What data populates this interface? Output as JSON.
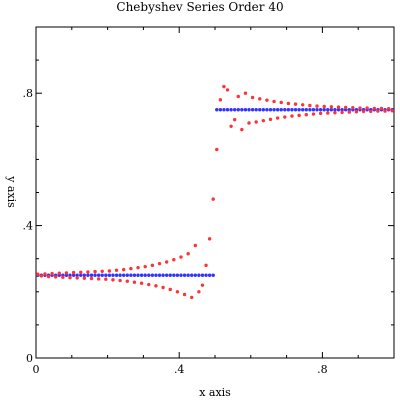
{
  "chart_data": {
    "type": "scatter",
    "title": "Chebyshev Series Order 40",
    "xlabel": "x axis",
    "ylabel": "y axis",
    "xlim": [
      0,
      1
    ],
    "ylim": [
      0,
      1
    ],
    "xticks": [
      {
        "value": 0,
        "label": "0"
      },
      {
        "value": 0.4,
        "label": ".4"
      },
      {
        "value": 0.8,
        "label": ".8"
      }
    ],
    "yticks": [
      {
        "value": 0,
        "label": "0"
      },
      {
        "value": 0.4,
        "label": ".4"
      },
      {
        "value": 0.8,
        "label": ".8"
      }
    ],
    "grid": false,
    "legend": "none",
    "series": [
      {
        "color": "#3333ff",
        "points": [
          [
            0.005,
            0.25
          ],
          [
            0.015,
            0.25
          ],
          [
            0.025,
            0.25
          ],
          [
            0.035,
            0.25
          ],
          [
            0.045,
            0.25
          ],
          [
            0.055,
            0.25
          ],
          [
            0.065,
            0.25
          ],
          [
            0.075,
            0.25
          ],
          [
            0.085,
            0.25
          ],
          [
            0.095,
            0.25
          ],
          [
            0.105,
            0.25
          ],
          [
            0.115,
            0.25
          ],
          [
            0.125,
            0.25
          ],
          [
            0.135,
            0.25
          ],
          [
            0.145,
            0.25
          ],
          [
            0.155,
            0.25
          ],
          [
            0.165,
            0.25
          ],
          [
            0.175,
            0.25
          ],
          [
            0.185,
            0.25
          ],
          [
            0.195,
            0.25
          ],
          [
            0.205,
            0.25
          ],
          [
            0.215,
            0.25
          ],
          [
            0.225,
            0.25
          ],
          [
            0.235,
            0.25
          ],
          [
            0.245,
            0.25
          ],
          [
            0.255,
            0.25
          ],
          [
            0.265,
            0.25
          ],
          [
            0.275,
            0.25
          ],
          [
            0.285,
            0.25
          ],
          [
            0.295,
            0.25
          ],
          [
            0.305,
            0.25
          ],
          [
            0.315,
            0.25
          ],
          [
            0.325,
            0.25
          ],
          [
            0.335,
            0.25
          ],
          [
            0.345,
            0.25
          ],
          [
            0.355,
            0.25
          ],
          [
            0.365,
            0.25
          ],
          [
            0.375,
            0.25
          ],
          [
            0.385,
            0.25
          ],
          [
            0.395,
            0.25
          ],
          [
            0.405,
            0.25
          ],
          [
            0.415,
            0.25
          ],
          [
            0.425,
            0.25
          ],
          [
            0.435,
            0.25
          ],
          [
            0.445,
            0.25
          ],
          [
            0.455,
            0.25
          ],
          [
            0.465,
            0.25
          ],
          [
            0.475,
            0.25
          ],
          [
            0.485,
            0.25
          ],
          [
            0.495,
            0.25
          ],
          [
            0.505,
            0.75
          ],
          [
            0.515,
            0.75
          ],
          [
            0.525,
            0.75
          ],
          [
            0.535,
            0.75
          ],
          [
            0.545,
            0.75
          ],
          [
            0.555,
            0.75
          ],
          [
            0.565,
            0.75
          ],
          [
            0.575,
            0.75
          ],
          [
            0.585,
            0.75
          ],
          [
            0.595,
            0.75
          ],
          [
            0.605,
            0.75
          ],
          [
            0.615,
            0.75
          ],
          [
            0.625,
            0.75
          ],
          [
            0.635,
            0.75
          ],
          [
            0.645,
            0.75
          ],
          [
            0.655,
            0.75
          ],
          [
            0.665,
            0.75
          ],
          [
            0.675,
            0.75
          ],
          [
            0.685,
            0.75
          ],
          [
            0.695,
            0.75
          ],
          [
            0.705,
            0.75
          ],
          [
            0.715,
            0.75
          ],
          [
            0.725,
            0.75
          ],
          [
            0.735,
            0.75
          ],
          [
            0.745,
            0.75
          ],
          [
            0.755,
            0.75
          ],
          [
            0.765,
            0.75
          ],
          [
            0.775,
            0.75
          ],
          [
            0.785,
            0.75
          ],
          [
            0.795,
            0.75
          ],
          [
            0.805,
            0.75
          ],
          [
            0.815,
            0.75
          ],
          [
            0.825,
            0.75
          ],
          [
            0.835,
            0.75
          ],
          [
            0.845,
            0.75
          ],
          [
            0.855,
            0.75
          ],
          [
            0.865,
            0.75
          ],
          [
            0.875,
            0.75
          ],
          [
            0.885,
            0.75
          ],
          [
            0.895,
            0.75
          ],
          [
            0.905,
            0.75
          ],
          [
            0.915,
            0.75
          ],
          [
            0.925,
            0.75
          ],
          [
            0.935,
            0.75
          ],
          [
            0.945,
            0.75
          ],
          [
            0.955,
            0.75
          ],
          [
            0.965,
            0.75
          ],
          [
            0.975,
            0.75
          ],
          [
            0.985,
            0.75
          ],
          [
            0.995,
            0.75
          ]
        ]
      },
      {
        "color": "#ff3333",
        "points": [
          [
            0.005,
            0.253
          ],
          [
            0.015,
            0.248
          ],
          [
            0.025,
            0.254
          ],
          [
            0.035,
            0.246
          ],
          [
            0.045,
            0.255
          ],
          [
            0.055,
            0.245
          ],
          [
            0.065,
            0.256
          ],
          [
            0.075,
            0.244
          ],
          [
            0.085,
            0.257
          ],
          [
            0.095,
            0.243
          ],
          [
            0.105,
            0.258
          ],
          [
            0.115,
            0.242
          ],
          [
            0.125,
            0.259
          ],
          [
            0.135,
            0.241
          ],
          [
            0.145,
            0.26
          ],
          [
            0.155,
            0.24
          ],
          [
            0.165,
            0.261
          ],
          [
            0.175,
            0.239
          ],
          [
            0.185,
            0.262
          ],
          [
            0.195,
            0.238
          ],
          [
            0.205,
            0.263
          ],
          [
            0.215,
            0.236
          ],
          [
            0.225,
            0.265
          ],
          [
            0.235,
            0.234
          ],
          [
            0.245,
            0.267
          ],
          [
            0.255,
            0.232
          ],
          [
            0.265,
            0.27
          ],
          [
            0.275,
            0.229
          ],
          [
            0.285,
            0.273
          ],
          [
            0.295,
            0.226
          ],
          [
            0.305,
            0.276
          ],
          [
            0.315,
            0.222
          ],
          [
            0.325,
            0.28
          ],
          [
            0.335,
            0.218
          ],
          [
            0.345,
            0.285
          ],
          [
            0.355,
            0.213
          ],
          [
            0.365,
            0.29
          ],
          [
            0.375,
            0.207
          ],
          [
            0.385,
            0.297
          ],
          [
            0.395,
            0.2
          ],
          [
            0.405,
            0.305
          ],
          [
            0.415,
            0.192
          ],
          [
            0.425,
            0.315
          ],
          [
            0.435,
            0.183
          ],
          [
            0.445,
            0.34
          ],
          [
            0.455,
            0.2
          ],
          [
            0.465,
            0.22
          ],
          [
            0.475,
            0.28
          ],
          [
            0.485,
            0.36
          ],
          [
            0.495,
            0.48
          ],
          [
            0.505,
            0.63
          ],
          [
            0.515,
            0.78
          ],
          [
            0.525,
            0.82
          ],
          [
            0.535,
            0.81
          ],
          [
            0.545,
            0.7
          ],
          [
            0.555,
            0.72
          ],
          [
            0.565,
            0.79
          ],
          [
            0.575,
            0.69
          ],
          [
            0.585,
            0.8
          ],
          [
            0.595,
            0.71
          ],
          [
            0.605,
            0.787
          ],
          [
            0.615,
            0.713
          ],
          [
            0.625,
            0.783
          ],
          [
            0.635,
            0.717
          ],
          [
            0.645,
            0.779
          ],
          [
            0.655,
            0.721
          ],
          [
            0.665,
            0.775
          ],
          [
            0.675,
            0.725
          ],
          [
            0.685,
            0.772
          ],
          [
            0.695,
            0.728
          ],
          [
            0.705,
            0.769
          ],
          [
            0.715,
            0.731
          ],
          [
            0.725,
            0.767
          ],
          [
            0.735,
            0.733
          ],
          [
            0.745,
            0.765
          ],
          [
            0.755,
            0.735
          ],
          [
            0.765,
            0.763
          ],
          [
            0.775,
            0.737
          ],
          [
            0.785,
            0.761
          ],
          [
            0.795,
            0.739
          ],
          [
            0.805,
            0.76
          ],
          [
            0.815,
            0.74
          ],
          [
            0.825,
            0.759
          ],
          [
            0.835,
            0.741
          ],
          [
            0.845,
            0.758
          ],
          [
            0.855,
            0.742
          ],
          [
            0.865,
            0.757
          ],
          [
            0.875,
            0.743
          ],
          [
            0.885,
            0.756
          ],
          [
            0.895,
            0.744
          ],
          [
            0.905,
            0.755
          ],
          [
            0.915,
            0.745
          ],
          [
            0.925,
            0.755
          ],
          [
            0.935,
            0.745
          ],
          [
            0.945,
            0.754
          ],
          [
            0.955,
            0.746
          ],
          [
            0.965,
            0.754
          ],
          [
            0.975,
            0.746
          ],
          [
            0.985,
            0.753
          ],
          [
            0.995,
            0.747
          ]
        ]
      }
    ]
  }
}
